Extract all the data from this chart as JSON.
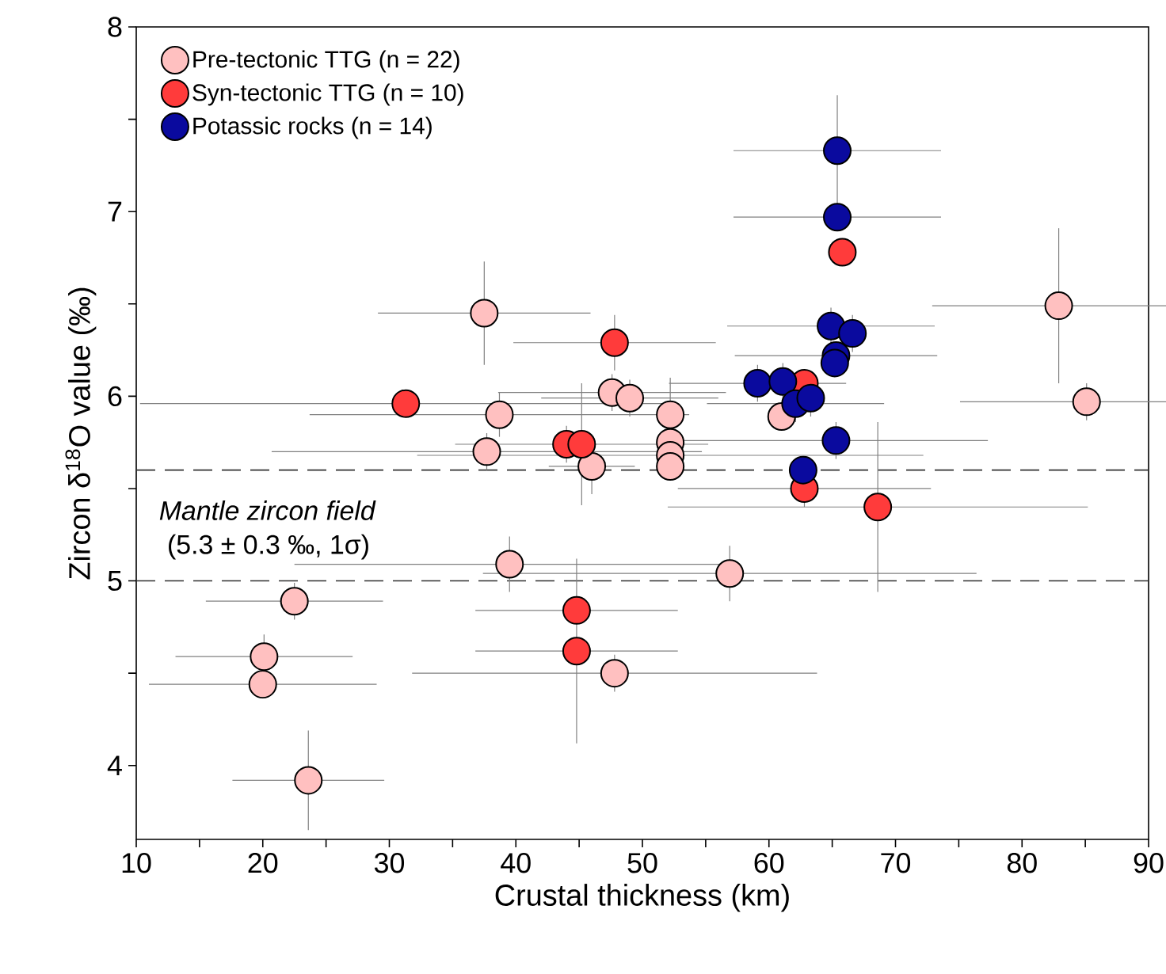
{
  "chart_data": {
    "type": "scatter",
    "xlabel": "Crustal thickness (km)",
    "ylabel": "Zircon δ$^{18}$O value (‰)",
    "xlim": [
      10,
      90
    ],
    "ylim": [
      3.6,
      8
    ],
    "xticks": [
      10,
      {
        "value": 15,
        "label": null
      },
      20,
      {
        "value": 25,
        "label": null
      },
      30,
      {
        "value": 35,
        "label": null
      },
      40,
      {
        "value": 45,
        "label": null
      },
      50,
      {
        "value": 55,
        "label": null
      },
      60,
      {
        "value": 65,
        "label": null
      },
      70,
      {
        "value": 75,
        "label": null
      },
      80,
      {
        "value": 85,
        "label": null
      },
      90
    ],
    "yticks": [
      4,
      {
        "value": 4.5,
        "label": null
      },
      5,
      {
        "value": 5.5,
        "label": null
      },
      6,
      {
        "value": 6.5,
        "label": null
      },
      7,
      {
        "value": 7.5,
        "label": null
      },
      8
    ],
    "marker": "circle",
    "grid": false,
    "legend": "top left",
    "ref_lines": [
      {
        "axis": "y",
        "value": 5.6,
        "line_style": "dashed"
      },
      {
        "axis": "y",
        "value": 5.0,
        "line_style": "dashed"
      }
    ],
    "annotations": [
      "*Mantle zircon field*",
      "(5.3 ± 0.3 ‰, 1σ)"
    ],
    "series": [
      {
        "name": "Pre-tectonic TTG (n = 22)",
        "color": "#ffc0c0",
        "x": [
          37.5,
          38.7,
          37.7,
          46.0,
          47.6,
          49.0,
          52.2,
          52.2,
          52.2,
          52.2,
          61.0,
          82.9,
          85.1,
          56.9,
          39.5,
          22.5,
          20.1,
          20.0,
          23.6,
          47.8
        ],
        "values": [
          6.45,
          5.9,
          5.7,
          5.62,
          6.02,
          5.99,
          5.9,
          5.75,
          5.68,
          5.62,
          5.89,
          6.49,
          5.97,
          5.04,
          5.09,
          4.89,
          4.59,
          4.44,
          3.92,
          4.5
        ],
        "xerrors": [
          8.4,
          15,
          17,
          3.4,
          9,
          7,
          null,
          null,
          20,
          null,
          null,
          10,
          10,
          19.5,
          17,
          7,
          7,
          9,
          6,
          16
        ],
        "errors": [
          0.28,
          0.12,
          0.1,
          0.15,
          0.1,
          0.1,
          0.2,
          null,
          null,
          null,
          null,
          0.42,
          0.1,
          0.15,
          0.15,
          0.1,
          0.12,
          null,
          0.27,
          0.1
        ]
      },
      {
        "name": "Syn-tectonic TTG (n = 10)",
        "color": "#ff3b3b",
        "x": [
          31.3,
          47.8,
          44.0,
          45.2,
          44.8,
          44.8,
          65.8,
          62.8,
          68.6,
          62.8
        ],
        "values": [
          5.96,
          6.29,
          5.74,
          5.74,
          4.84,
          4.62,
          6.78,
          5.5,
          5.4,
          6.07
        ],
        "xerrors": [
          21,
          8,
          null,
          10,
          8,
          8,
          null,
          10,
          16.6,
          null
        ],
        "errors": [
          0.05,
          0.15,
          0.1,
          0.33,
          null,
          0.5,
          null,
          0.1,
          0.46,
          null
        ]
      },
      {
        "name": "Potassic rocks (n = 14)",
        "color": "#0a0a9e",
        "x": [
          65.4,
          65.4,
          64.9,
          66.6,
          65.3,
          65.2,
          59.1,
          61.1,
          62.1,
          63.3,
          65.3,
          62.7
        ],
        "values": [
          7.33,
          6.97,
          6.38,
          6.34,
          6.22,
          6.18,
          6.07,
          6.08,
          5.96,
          5.99,
          5.76,
          5.6
        ],
        "xerrors": [
          8.2,
          8.2,
          8.2,
          null,
          8,
          null,
          7,
          null,
          7,
          null,
          12,
          null
        ],
        "errors": [
          0.3,
          null,
          0.1,
          0.1,
          null,
          null,
          0.1,
          0.1,
          0.1,
          0.1,
          0.1,
          null
        ]
      }
    ]
  }
}
